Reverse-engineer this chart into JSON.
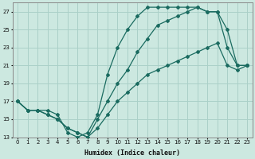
{
  "xlabel": "Humidex (Indice chaleur)",
  "background_color": "#cce8e0",
  "grid_color": "#aad0c8",
  "line_color": "#1a6b60",
  "xlim": [
    -0.5,
    23.5
  ],
  "ylim": [
    13,
    28
  ],
  "xticks": [
    0,
    1,
    2,
    3,
    4,
    5,
    6,
    7,
    8,
    9,
    10,
    11,
    12,
    13,
    14,
    15,
    16,
    17,
    18,
    19,
    20,
    21,
    22,
    23
  ],
  "yticks": [
    13,
    15,
    17,
    19,
    21,
    23,
    25,
    27
  ],
  "line1_x": [
    0,
    1,
    2,
    3,
    4,
    5,
    6,
    7,
    8,
    9,
    10,
    11,
    12,
    13,
    14,
    15,
    16,
    17,
    18,
    19,
    20,
    21,
    22,
    23
  ],
  "line1_y": [
    17,
    16,
    16,
    16,
    15.5,
    13.5,
    13,
    13.5,
    15.5,
    20,
    23,
    25,
    26.5,
    27.5,
    27.5,
    27.5,
    27.5,
    27.5,
    27.5,
    27,
    27,
    23,
    21,
    21
  ],
  "line2_x": [
    0,
    1,
    2,
    3,
    4,
    5,
    6,
    7,
    8,
    9,
    10,
    11,
    12,
    13,
    14,
    15,
    16,
    17,
    18,
    19,
    20,
    21,
    22,
    23
  ],
  "line2_y": [
    17,
    16,
    16,
    15.5,
    15,
    14,
    13.5,
    13,
    15,
    17,
    19,
    20.5,
    22.5,
    24,
    25.5,
    26,
    26.5,
    27,
    27.5,
    27,
    27,
    25,
    21,
    21
  ],
  "line3_x": [
    0,
    1,
    2,
    3,
    4,
    5,
    6,
    7,
    8,
    9,
    10,
    11,
    12,
    13,
    14,
    15,
    16,
    17,
    18,
    19,
    20,
    21,
    22,
    23
  ],
  "line3_y": [
    17,
    16,
    16,
    15.5,
    15,
    14,
    13.5,
    13,
    14,
    15.5,
    17,
    18,
    19,
    20,
    20.5,
    21,
    21.5,
    22,
    22.5,
    23,
    23.5,
    21,
    20.5,
    21
  ]
}
